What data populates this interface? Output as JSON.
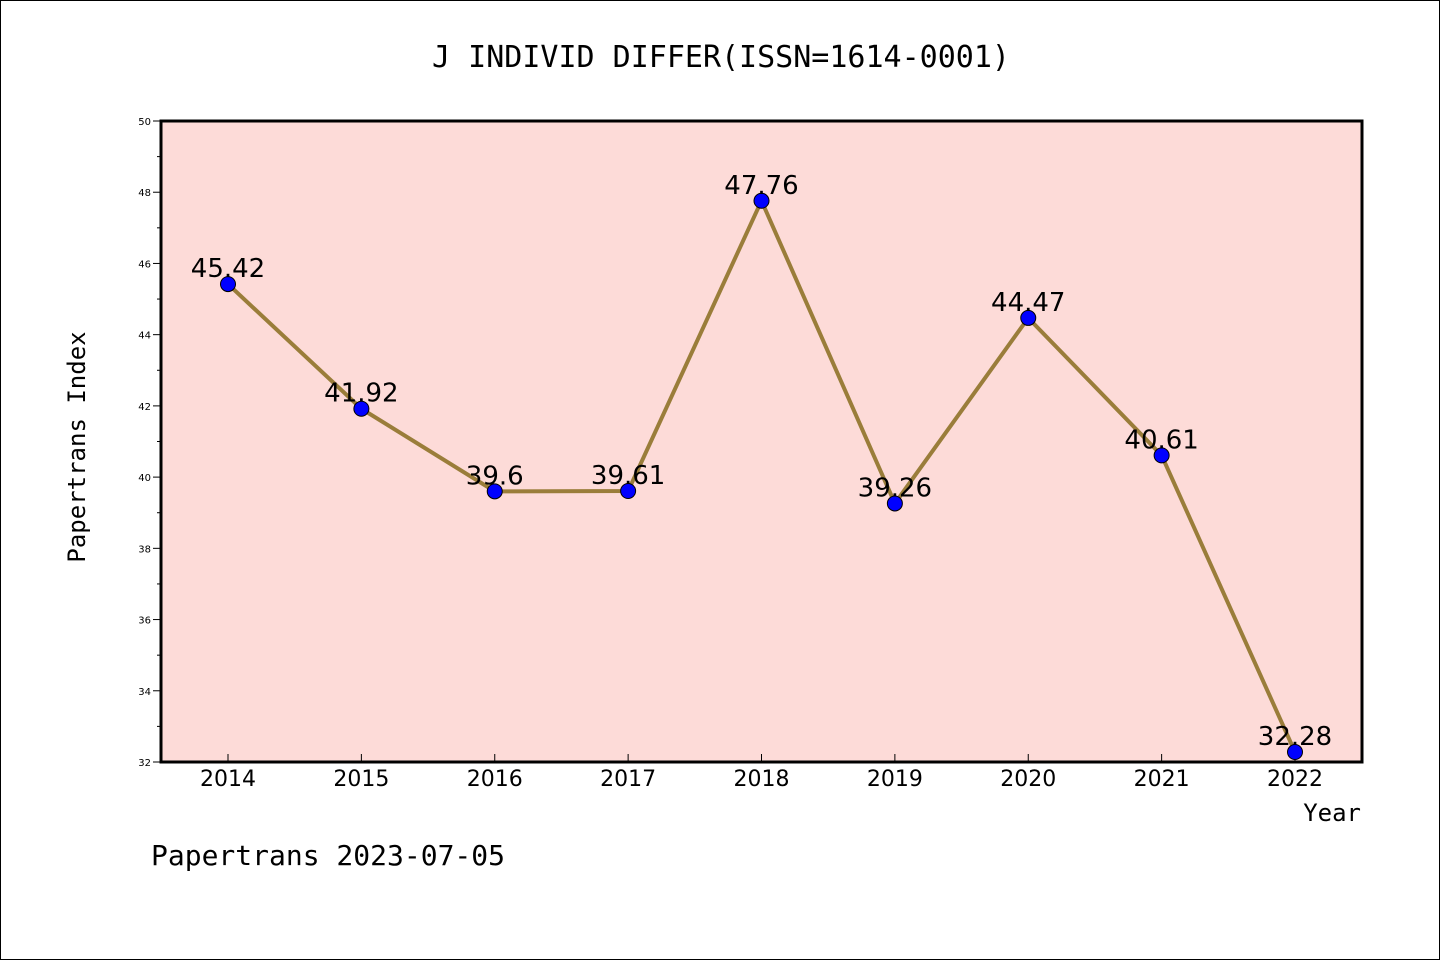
{
  "chart_data": {
    "type": "line",
    "title": "J INDIVID DIFFER(ISSN=1614-0001)",
    "xlabel": "Year",
    "ylabel": "Papertrans Index",
    "categories": [
      "2014",
      "2015",
      "2016",
      "2017",
      "2018",
      "2019",
      "2020",
      "2021",
      "2022"
    ],
    "series": [
      {
        "values": [
          45.42,
          41.92,
          39.6,
          39.61,
          47.76,
          39.26,
          44.47,
          40.61,
          32.28
        ],
        "labels": [
          "45.42",
          "41.92",
          "39.6",
          "39.61",
          "47.76",
          "39.26",
          "44.47",
          "40.61",
          "32.28"
        ]
      }
    ],
    "ylim": [
      32,
      50
    ],
    "yticks": [
      "32",
      "34",
      "36",
      "38",
      "40",
      "42",
      "44",
      "46",
      "48",
      "50"
    ],
    "grid": false,
    "colors": {
      "plot_background": "#fddbd8",
      "line": "#9a7d3a",
      "marker": "#0000ff"
    }
  },
  "footer": "Papertrans 2023-07-05"
}
